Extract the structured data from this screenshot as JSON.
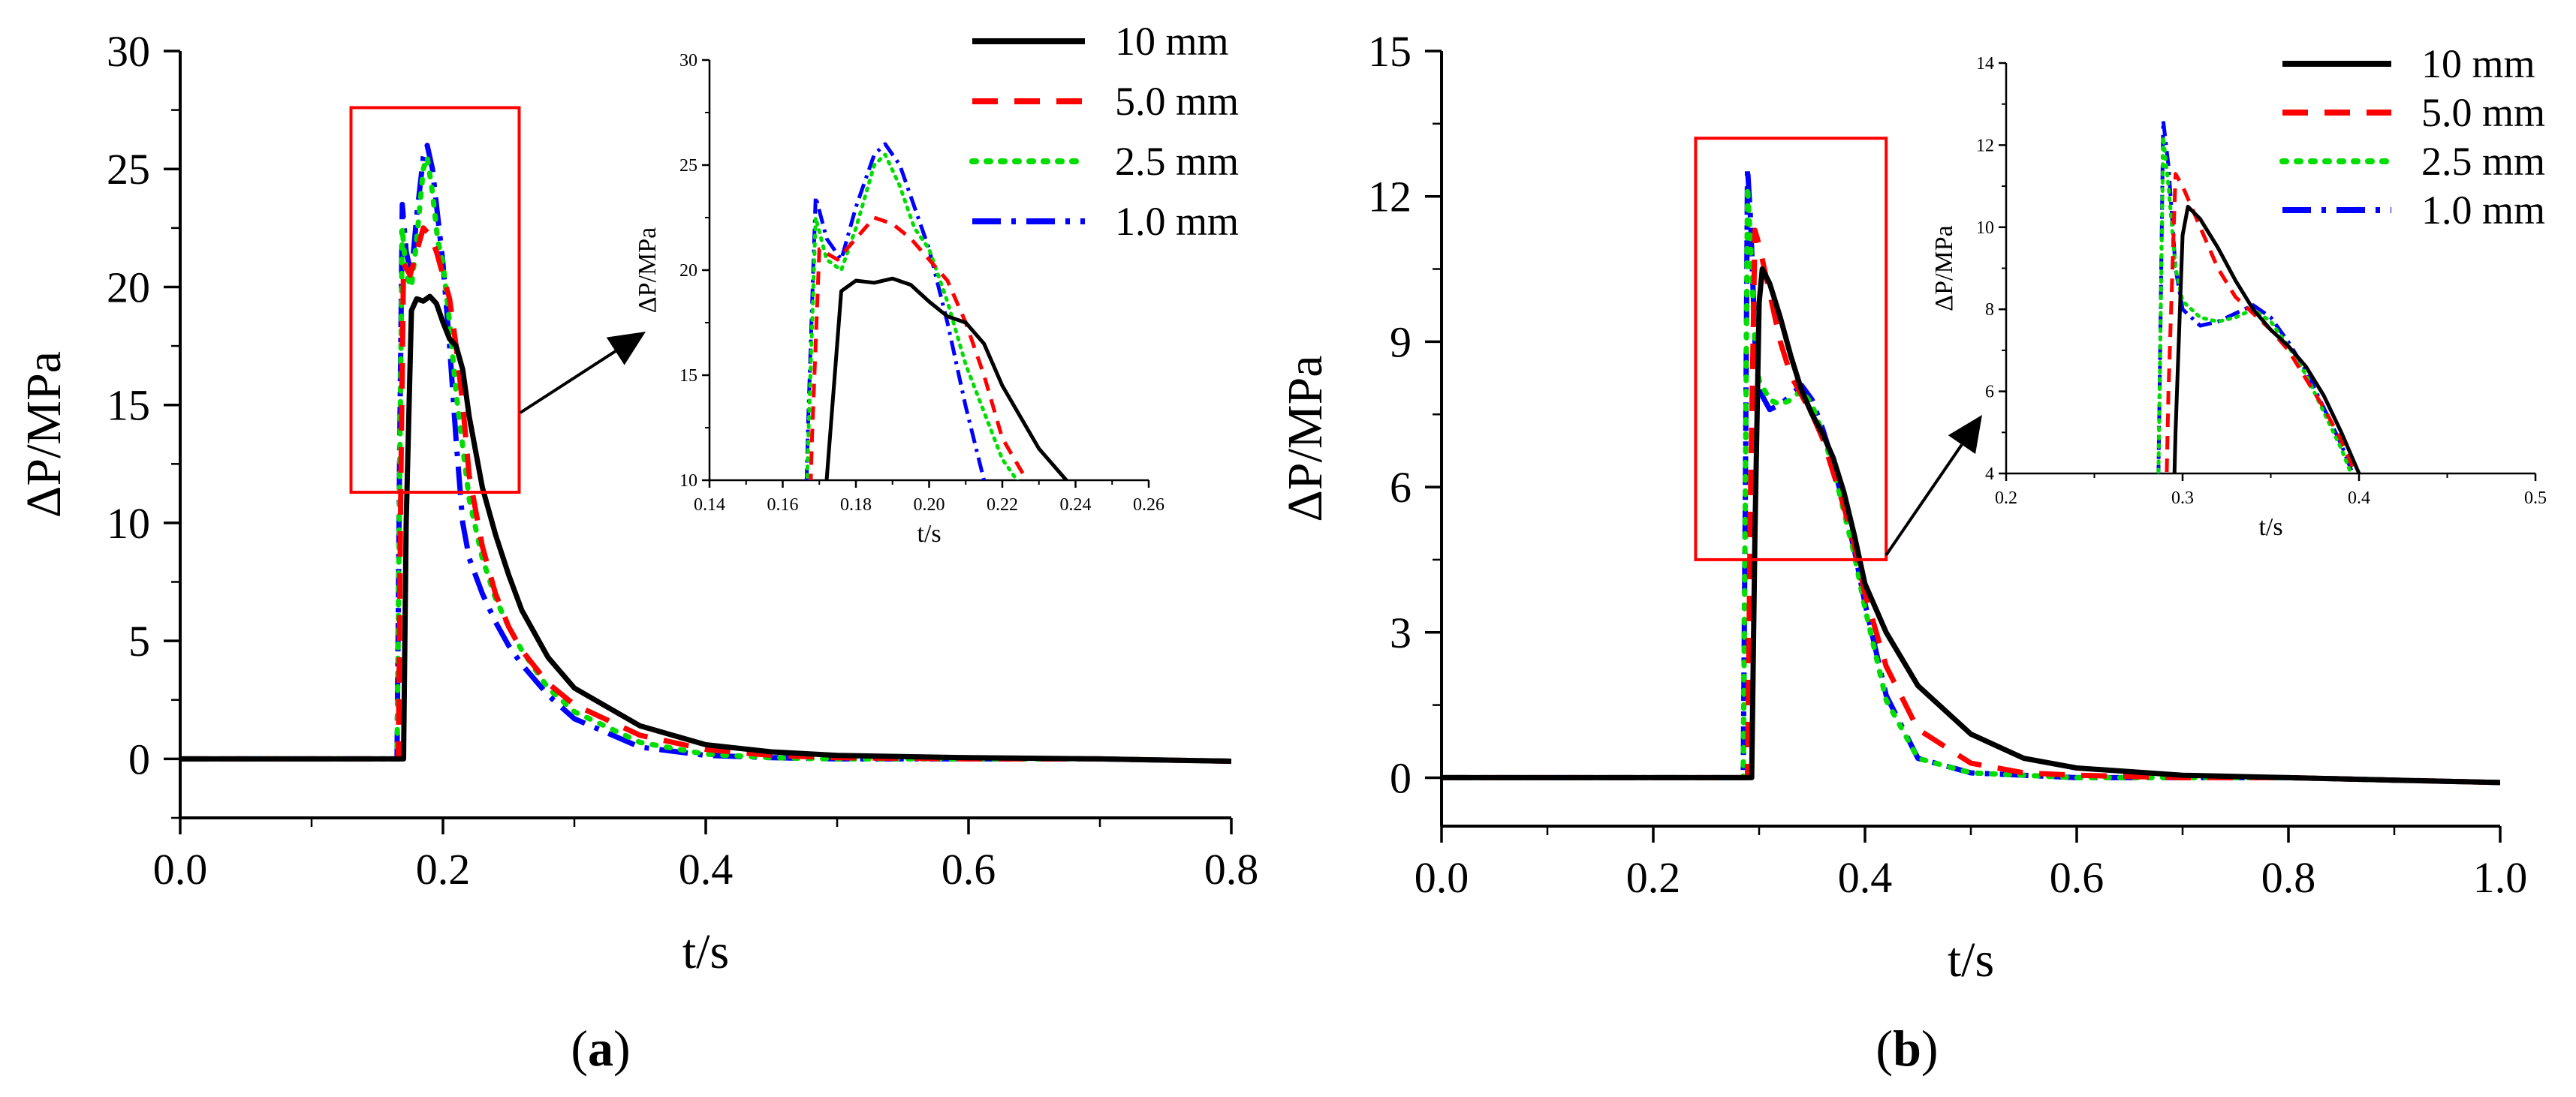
{
  "colors": {
    "10 mm": "#000000",
    "5.0 mm": "#ff0000",
    "2.5 mm": "#00dd00",
    "1.0 mm": "#0000ff",
    "highlight_box": "#ff0000"
  },
  "chart_data": [
    {
      "id": "a",
      "type": "line",
      "panel_label": "a",
      "xlabel": "t/s",
      "ylabel": "ΔP/MPa",
      "xlim": [
        0.0,
        0.8
      ],
      "ylim": [
        -2.5,
        30
      ],
      "xticks": [
        "0.0",
        "0.2",
        "0.4",
        "0.6",
        "0.8"
      ],
      "yticks": [
        "0",
        "5",
        "10",
        "15",
        "20",
        "25",
        "30"
      ],
      "legend_position": "top-right",
      "series": [
        {
          "name": "10 mm",
          "style": "solid",
          "x": [
            0.0,
            0.17,
            0.172,
            0.176,
            0.18,
            0.185,
            0.19,
            0.195,
            0.2,
            0.205,
            0.21,
            0.215,
            0.22,
            0.23,
            0.24,
            0.25,
            0.26,
            0.28,
            0.3,
            0.35,
            0.4,
            0.45,
            0.5,
            0.6,
            0.7,
            0.8
          ],
          "y": [
            0,
            0,
            10,
            19,
            19.5,
            19.4,
            19.6,
            19.3,
            18.5,
            17.8,
            17.5,
            16.5,
            14.5,
            11.5,
            9.5,
            7.8,
            6.3,
            4.3,
            3.0,
            1.4,
            0.6,
            0.3,
            0.15,
            0.05,
            0.0,
            -0.1
          ]
        },
        {
          "name": "5.0 mm",
          "style": "dashed",
          "x": [
            0.0,
            0.166,
            0.168,
            0.17,
            0.175,
            0.18,
            0.185,
            0.19,
            0.195,
            0.2,
            0.205,
            0.21,
            0.215,
            0.22,
            0.23,
            0.24,
            0.25,
            0.26,
            0.28,
            0.3,
            0.35,
            0.4,
            0.45,
            0.5,
            0.6,
            0.7,
            0.8
          ],
          "y": [
            0,
            0,
            12,
            21,
            20.5,
            21.5,
            22.5,
            22.2,
            21.5,
            20.5,
            19.5,
            17.5,
            15.0,
            12.0,
            9.0,
            7.0,
            5.6,
            4.6,
            3.2,
            2.3,
            1.0,
            0.4,
            0.15,
            0.05,
            0.0,
            0.0,
            -0.1
          ]
        },
        {
          "name": "2.5 mm",
          "style": "dotted",
          "x": [
            0.0,
            0.165,
            0.167,
            0.169,
            0.172,
            0.176,
            0.18,
            0.185,
            0.188,
            0.192,
            0.196,
            0.2,
            0.205,
            0.21,
            0.22,
            0.23,
            0.24,
            0.25,
            0.26,
            0.28,
            0.3,
            0.35,
            0.4,
            0.45,
            0.5,
            0.6,
            0.7,
            0.8
          ],
          "y": [
            0,
            0,
            12,
            22.5,
            20.5,
            20.0,
            22.0,
            25.0,
            25.5,
            24.0,
            22.0,
            21.0,
            18.5,
            15.5,
            11.0,
            8.5,
            6.8,
            5.6,
            4.6,
            3.0,
            2.0,
            0.7,
            0.2,
            0.05,
            0.0,
            0.0,
            0.0,
            -0.1
          ]
        },
        {
          "name": "1.0 mm",
          "style": "dashdot",
          "x": [
            0.0,
            0.165,
            0.167,
            0.169,
            0.172,
            0.176,
            0.18,
            0.185,
            0.188,
            0.192,
            0.196,
            0.2,
            0.205,
            0.21,
            0.215,
            0.22,
            0.23,
            0.24,
            0.25,
            0.26,
            0.28,
            0.3,
            0.35,
            0.4,
            0.45,
            0.5,
            0.6,
            0.7,
            0.8
          ],
          "y": [
            0,
            0,
            13,
            23.5,
            21.5,
            20.5,
            23.0,
            25.5,
            26.0,
            25.0,
            23.0,
            21.0,
            17.5,
            13.5,
            10.0,
            8.5,
            7.0,
            5.8,
            4.8,
            4.0,
            2.7,
            1.7,
            0.5,
            0.15,
            0.05,
            0.0,
            0.0,
            0.0,
            -0.1
          ]
        }
      ],
      "inset": {
        "xlabel": "t/s",
        "ylabel": "ΔP/MPa",
        "xlim": [
          0.14,
          0.26
        ],
        "ylim": [
          10,
          30
        ],
        "xticks": [
          "0.14",
          "0.16",
          "0.18",
          "0.20",
          "0.22",
          "0.24",
          "0.26"
        ],
        "yticks": [
          "10",
          "15",
          "20",
          "25",
          "30"
        ]
      },
      "highlight_region": {
        "x": [
          0.13,
          0.258
        ],
        "y": [
          11.3,
          27.6
        ]
      }
    },
    {
      "id": "b",
      "type": "line",
      "panel_label": "b",
      "xlabel": "t/s",
      "ylabel": "ΔP/MPa",
      "xlim": [
        0.0,
        1.0
      ],
      "ylim": [
        -1,
        15
      ],
      "xticks": [
        "0.0",
        "0.2",
        "0.4",
        "0.6",
        "0.8",
        "1.0"
      ],
      "yticks": [
        "0",
        "3",
        "6",
        "9",
        "12",
        "15"
      ],
      "legend_position": "top-right",
      "series": [
        {
          "name": "10 mm",
          "style": "solid",
          "x": [
            0.0,
            0.293,
            0.296,
            0.3,
            0.303,
            0.31,
            0.32,
            0.33,
            0.34,
            0.35,
            0.36,
            0.37,
            0.38,
            0.39,
            0.4,
            0.42,
            0.45,
            0.5,
            0.55,
            0.6,
            0.7,
            0.8,
            0.9,
            1.0
          ],
          "y": [
            0,
            0,
            5,
            9.8,
            10.5,
            10.2,
            9.5,
            8.7,
            8.0,
            7.5,
            7.1,
            6.6,
            5.9,
            5.0,
            4.0,
            3.0,
            1.9,
            0.9,
            0.4,
            0.2,
            0.05,
            0.0,
            -0.05,
            -0.1
          ]
        },
        {
          "name": "5.0 mm",
          "style": "dashed",
          "x": [
            0.0,
            0.289,
            0.292,
            0.296,
            0.3,
            0.31,
            0.32,
            0.33,
            0.34,
            0.35,
            0.36,
            0.37,
            0.38,
            0.39,
            0.4,
            0.42,
            0.45,
            0.5,
            0.55,
            0.6,
            0.7,
            0.8,
            0.9,
            1.0
          ],
          "y": [
            0,
            0,
            6,
            11.3,
            11.0,
            10.0,
            9.0,
            8.3,
            7.9,
            7.5,
            7.0,
            6.3,
            5.6,
            4.8,
            3.8,
            2.3,
            1.0,
            0.3,
            0.1,
            0.05,
            0.0,
            0.0,
            -0.05,
            -0.1
          ]
        },
        {
          "name": "2.5 mm",
          "style": "dotted",
          "x": [
            0.0,
            0.285,
            0.287,
            0.289,
            0.292,
            0.296,
            0.3,
            0.31,
            0.32,
            0.33,
            0.34,
            0.35,
            0.36,
            0.37,
            0.38,
            0.39,
            0.4,
            0.42,
            0.45,
            0.5,
            0.6,
            0.7,
            0.8,
            0.9,
            1.0
          ],
          "y": [
            0,
            0,
            6,
            12.2,
            11.0,
            9.0,
            8.2,
            7.8,
            7.7,
            7.8,
            8.0,
            7.7,
            7.1,
            6.4,
            5.5,
            4.6,
            3.5,
            1.6,
            0.4,
            0.1,
            0.0,
            0.0,
            0.0,
            -0.05,
            -0.1
          ]
        },
        {
          "name": "1.0 mm",
          "style": "dashdot",
          "x": [
            0.0,
            0.285,
            0.287,
            0.289,
            0.292,
            0.296,
            0.3,
            0.31,
            0.32,
            0.33,
            0.34,
            0.35,
            0.36,
            0.37,
            0.38,
            0.39,
            0.4,
            0.42,
            0.45,
            0.5,
            0.6,
            0.7,
            0.8,
            0.9,
            1.0
          ],
          "y": [
            0,
            0,
            6,
            12.6,
            11.5,
            9.0,
            8.0,
            7.6,
            7.7,
            7.9,
            8.1,
            7.8,
            7.2,
            6.5,
            5.6,
            4.7,
            3.6,
            1.7,
            0.4,
            0.1,
            0.0,
            0.0,
            0.0,
            -0.05,
            -0.1
          ]
        }
      ],
      "inset": {
        "xlabel": "t/s",
        "ylabel": "ΔP/MPa",
        "xlim": [
          0.2,
          0.5
        ],
        "ylim": [
          4,
          14
        ],
        "xticks": [
          "0.2",
          "0.3",
          "0.4",
          "0.5"
        ],
        "yticks": [
          "4",
          "6",
          "8",
          "10",
          "12",
          "14"
        ]
      },
      "highlight_region": {
        "x": [
          0.24,
          0.42
        ],
        "y": [
          4.5,
          13.2
        ]
      }
    }
  ]
}
